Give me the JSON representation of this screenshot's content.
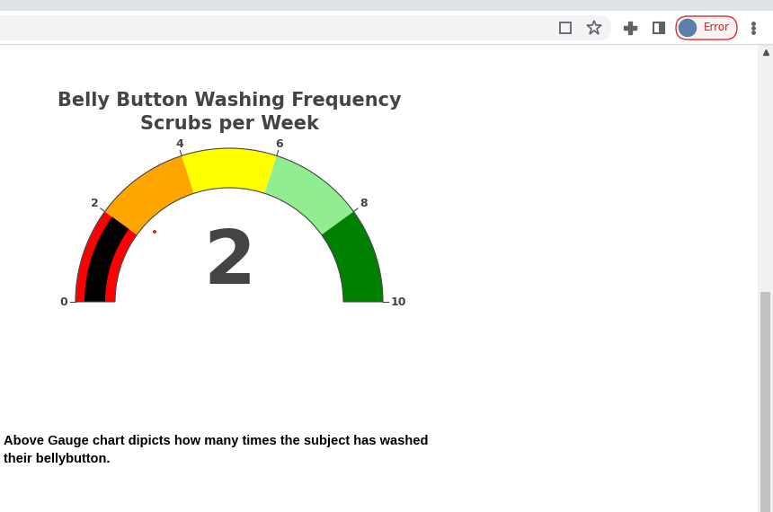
{
  "chart_data": {
    "type": "gauge",
    "title": "Belly Button Washing Frequency",
    "subtitle": "Scrubs per Week",
    "value": 2,
    "color": "#000000",
    "xlim": [
      0,
      10
    ],
    "xticks": [
      0,
      2,
      4,
      6,
      8,
      10
    ],
    "steps": [
      {
        "range": [
          0,
          2
        ],
        "color": "#ff0000"
      },
      {
        "range": [
          2,
          4
        ],
        "color": "#ffa500"
      },
      {
        "range": [
          4,
          6
        ],
        "color": "#ffff00"
      },
      {
        "range": [
          6,
          8
        ],
        "color": "#90ee90"
      },
      {
        "range": [
          8,
          10
        ],
        "color": "#008000"
      }
    ]
  },
  "caption": [
    "Above Gauge chart dipicts how many times the subject has washed",
    "their bellybutton."
  ],
  "browser": {
    "profile_button": "Error"
  }
}
